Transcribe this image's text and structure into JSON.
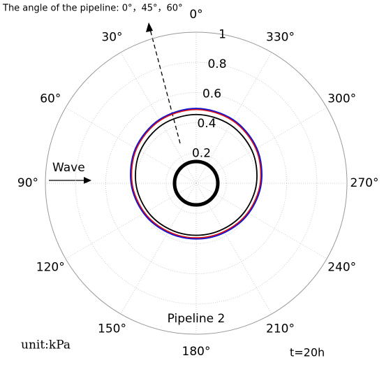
{
  "chart_data": {
    "type": "polar",
    "title": "The angle of the pipeline: 0°，45°，60°",
    "annotations": {
      "wave": "Wave",
      "pipeline": "Pipeline 2",
      "unit": "unit:kPa",
      "time": "t=20h"
    },
    "theta_zero": "top",
    "theta_direction": "counterclockwise",
    "rlim": [
      0,
      1
    ],
    "rticks": [
      0.2,
      0.4,
      0.6,
      0.8,
      1
    ],
    "thetaticks": [
      {
        "value": 0,
        "label": "0°"
      },
      {
        "value": 30,
        "label": "30°"
      },
      {
        "value": 60,
        "label": "60°"
      },
      {
        "value": 90,
        "label": "90°"
      },
      {
        "value": 120,
        "label": "120°"
      },
      {
        "value": 150,
        "label": "150°"
      },
      {
        "value": 180,
        "label": "180°"
      },
      {
        "value": 210,
        "label": "210°"
      },
      {
        "value": 240,
        "label": "240°"
      },
      {
        "value": 270,
        "label": "270°"
      },
      {
        "value": 300,
        "label": "300°"
      },
      {
        "value": 330,
        "label": "330°"
      }
    ],
    "grid": true,
    "theta": [
      0,
      30,
      60,
      90,
      120,
      150,
      180,
      210,
      240,
      270,
      300,
      330
    ],
    "series": [
      {
        "color": "#000000",
        "values": [
          0.455,
          0.448,
          0.428,
          0.4,
          0.373,
          0.352,
          0.345,
          0.352,
          0.373,
          0.4,
          0.428,
          0.448
        ]
      },
      {
        "color": "#e01010",
        "values": [
          0.488,
          0.48,
          0.457,
          0.425,
          0.394,
          0.37,
          0.362,
          0.37,
          0.394,
          0.425,
          0.457,
          0.48
        ]
      },
      {
        "color": "#1515d0",
        "values": [
          0.495,
          0.487,
          0.464,
          0.432,
          0.401,
          0.377,
          0.369,
          0.377,
          0.401,
          0.432,
          0.464,
          0.487
        ]
      }
    ]
  }
}
